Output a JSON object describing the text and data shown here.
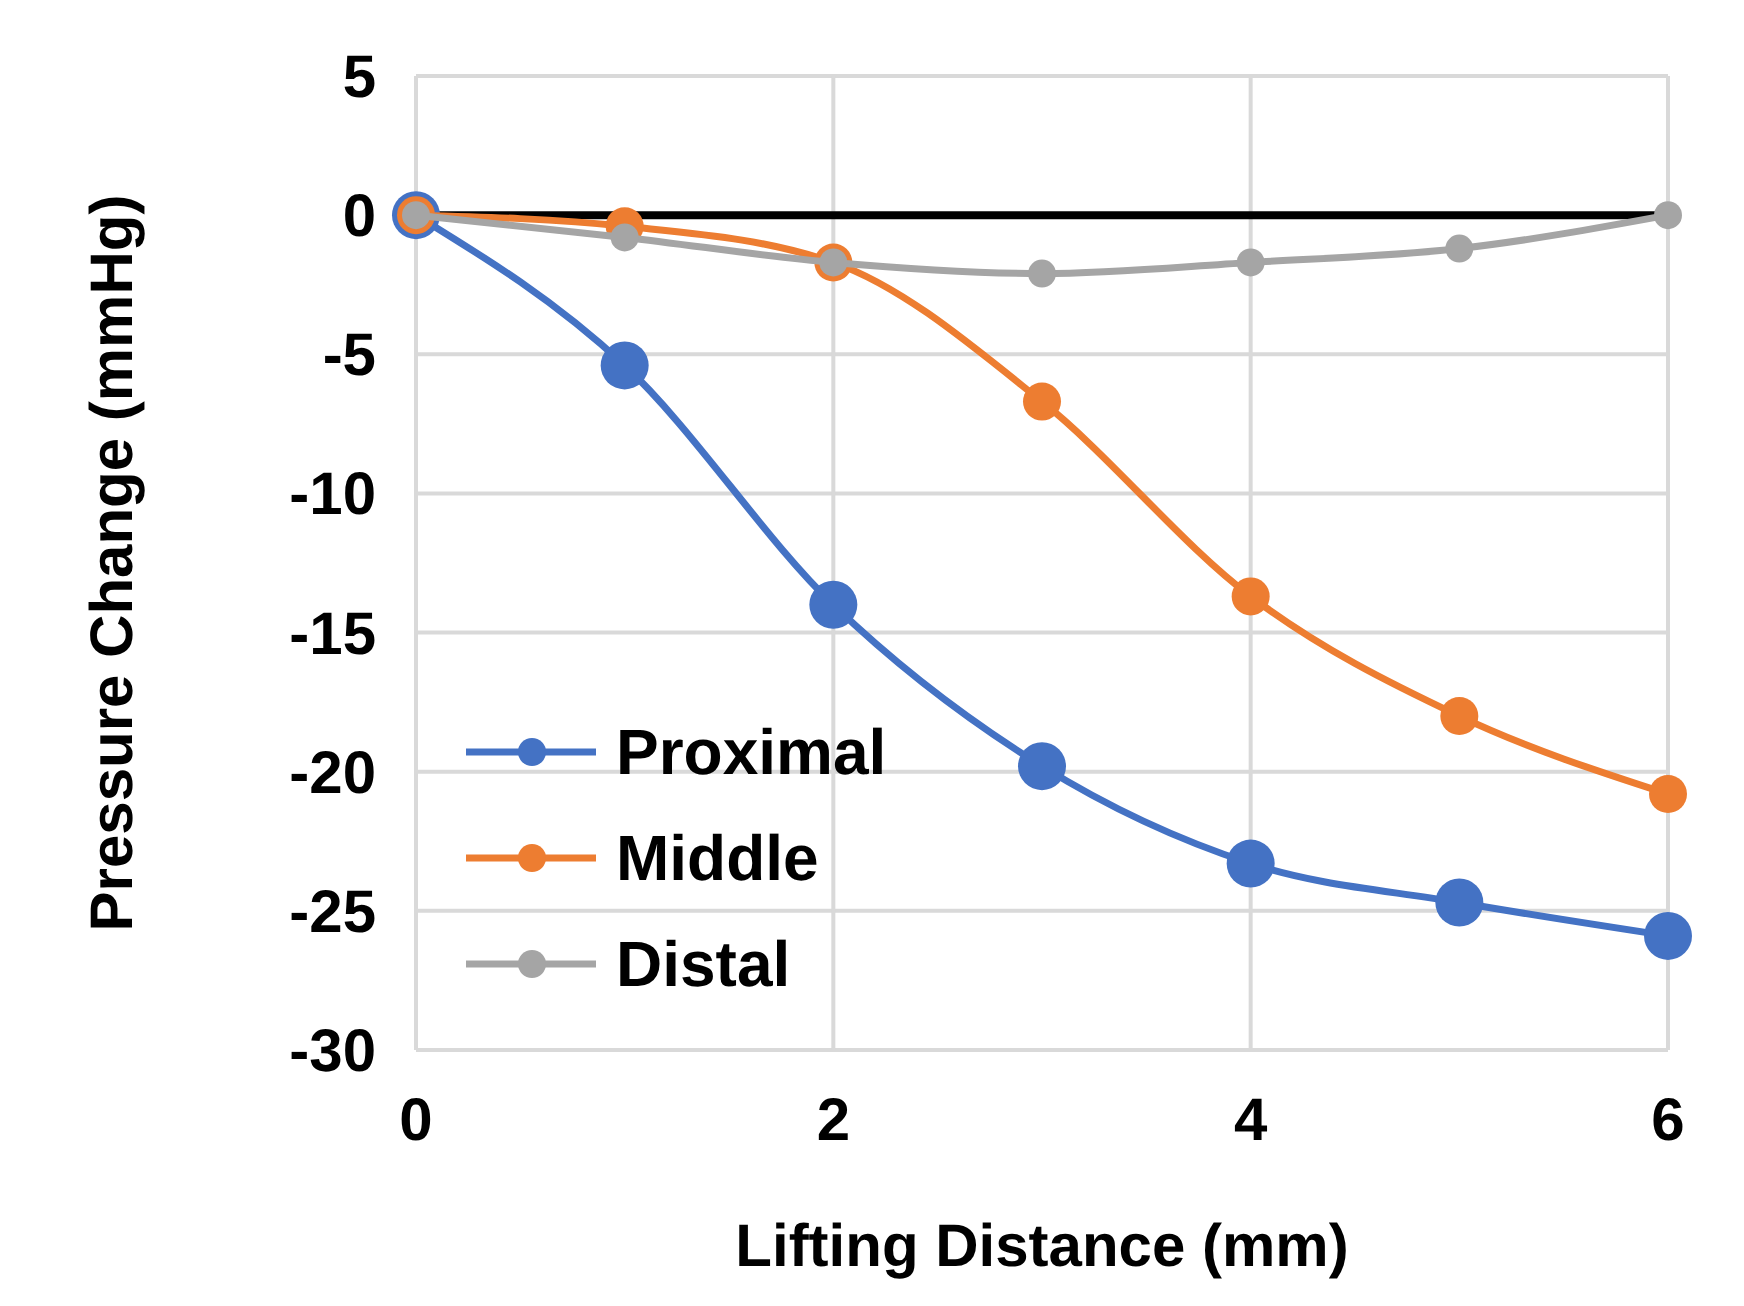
{
  "chart_data": {
    "type": "line",
    "xlabel": "Lifting Distance (mm)",
    "ylabel": "Pressure Change (mmHg)",
    "x": [
      0,
      1,
      2,
      3,
      4,
      5,
      6
    ],
    "series": [
      {
        "name": "Proximal",
        "color": "#4472c4",
        "values": [
          0,
          -5.4,
          -14,
          -19.8,
          -23.3,
          -24.7,
          -25.9
        ]
      },
      {
        "name": "Middle",
        "color": "#ed7d31",
        "values": [
          0,
          -0.4,
          -1.7,
          -6.7,
          -13.7,
          -18,
          -20.8
        ]
      },
      {
        "name": "Distal",
        "color": "#a5a5a5",
        "values": [
          0,
          -0.8,
          -1.7,
          -2.1,
          -1.7,
          -1.2,
          0
        ]
      }
    ],
    "xlim": [
      0,
      6
    ],
    "xticks": [
      0,
      2,
      4,
      6
    ],
    "ylim": [
      -30,
      5
    ],
    "yticks": [
      5,
      0,
      -5,
      -10,
      -15,
      -20,
      -25,
      -30
    ],
    "ref_lines": [
      {
        "axis": "y",
        "value": 0,
        "color": "#000000"
      }
    ],
    "grid": true,
    "legend": "bottom left",
    "marker": "circle",
    "line_style": "solid"
  }
}
